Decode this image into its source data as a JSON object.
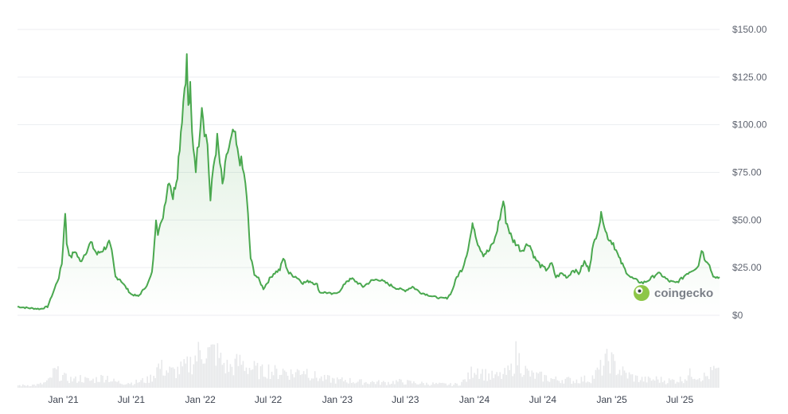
{
  "chart_data": {
    "type": "area",
    "series": [
      {
        "values": [
          [
            "2020-09-01",
            4.5
          ],
          [
            "2020-10-01",
            3.8
          ],
          [
            "2020-11-01",
            3.3
          ],
          [
            "2020-11-20",
            4.5
          ],
          [
            "2020-12-05",
            12
          ],
          [
            "2020-12-20",
            20
          ],
          [
            "2020-12-28",
            27
          ],
          [
            "2021-01-03",
            45
          ],
          [
            "2021-01-06",
            55
          ],
          [
            "2021-01-10",
            38
          ],
          [
            "2021-01-20",
            30
          ],
          [
            "2021-02-01",
            34
          ],
          [
            "2021-02-15",
            28
          ],
          [
            "2021-03-01",
            33
          ],
          [
            "2021-03-15",
            38
          ],
          [
            "2021-04-01",
            32
          ],
          [
            "2021-04-20",
            35
          ],
          [
            "2021-05-03",
            38
          ],
          [
            "2021-05-10",
            33
          ],
          [
            "2021-05-20",
            20
          ],
          [
            "2021-06-01",
            19
          ],
          [
            "2021-06-15",
            15
          ],
          [
            "2021-07-01",
            11
          ],
          [
            "2021-07-20",
            10
          ],
          [
            "2021-08-01",
            13
          ],
          [
            "2021-08-15",
            17
          ],
          [
            "2021-08-25",
            22
          ],
          [
            "2021-09-01",
            38
          ],
          [
            "2021-09-05",
            52
          ],
          [
            "2021-09-10",
            44
          ],
          [
            "2021-09-20",
            48
          ],
          [
            "2021-10-01",
            62
          ],
          [
            "2021-10-10",
            72
          ],
          [
            "2021-10-20",
            62
          ],
          [
            "2021-11-01",
            75
          ],
          [
            "2021-11-10",
            97
          ],
          [
            "2021-11-20",
            120
          ],
          [
            "2021-11-26",
            134
          ],
          [
            "2021-11-30",
            108
          ],
          [
            "2021-12-05",
            118
          ],
          [
            "2021-12-10",
            95
          ],
          [
            "2021-12-20",
            78
          ],
          [
            "2021-12-28",
            92
          ],
          [
            "2022-01-05",
            112
          ],
          [
            "2022-01-12",
            98
          ],
          [
            "2022-01-20",
            90
          ],
          [
            "2022-01-28",
            60
          ],
          [
            "2022-02-05",
            78
          ],
          [
            "2022-02-15",
            92
          ],
          [
            "2022-03-01",
            68
          ],
          [
            "2022-03-15",
            86
          ],
          [
            "2022-04-01",
            96
          ],
          [
            "2022-04-10",
            85
          ],
          [
            "2022-04-20",
            80
          ],
          [
            "2022-05-01",
            70
          ],
          [
            "2022-05-08",
            52
          ],
          [
            "2022-05-15",
            30
          ],
          [
            "2022-05-25",
            22
          ],
          [
            "2022-06-05",
            19
          ],
          [
            "2022-06-18",
            14
          ],
          [
            "2022-07-01",
            18
          ],
          [
            "2022-07-15",
            22
          ],
          [
            "2022-08-01",
            24
          ],
          [
            "2022-08-10",
            30
          ],
          [
            "2022-08-25",
            22
          ],
          [
            "2022-09-15",
            20
          ],
          [
            "2022-10-01",
            17
          ],
          [
            "2022-10-20",
            18
          ],
          [
            "2022-11-08",
            16
          ],
          [
            "2022-11-15",
            12
          ],
          [
            "2022-12-01",
            12
          ],
          [
            "2022-12-20",
            11
          ],
          [
            "2023-01-10",
            13
          ],
          [
            "2023-01-25",
            18
          ],
          [
            "2023-02-10",
            19
          ],
          [
            "2023-02-25",
            17
          ],
          [
            "2023-03-10",
            15
          ],
          [
            "2023-04-01",
            18
          ],
          [
            "2023-04-20",
            19
          ],
          [
            "2023-05-10",
            17
          ],
          [
            "2023-06-10",
            14
          ],
          [
            "2023-07-01",
            13
          ],
          [
            "2023-07-20",
            15
          ],
          [
            "2023-08-10",
            12
          ],
          [
            "2023-09-10",
            10
          ],
          [
            "2023-10-01",
            9
          ],
          [
            "2023-10-20",
            9
          ],
          [
            "2023-11-01",
            12
          ],
          [
            "2023-11-15",
            20
          ],
          [
            "2023-12-01",
            25
          ],
          [
            "2023-12-15",
            35
          ],
          [
            "2023-12-25",
            45
          ],
          [
            "2023-12-29",
            48
          ],
          [
            "2024-01-10",
            38
          ],
          [
            "2024-01-25",
            32
          ],
          [
            "2024-02-10",
            34
          ],
          [
            "2024-02-25",
            40
          ],
          [
            "2024-03-05",
            48
          ],
          [
            "2024-03-13",
            55
          ],
          [
            "2024-03-18",
            60
          ],
          [
            "2024-03-25",
            50
          ],
          [
            "2024-04-10",
            40
          ],
          [
            "2024-04-20",
            38
          ],
          [
            "2024-05-05",
            34
          ],
          [
            "2024-05-25",
            38
          ],
          [
            "2024-06-10",
            30
          ],
          [
            "2024-06-25",
            26
          ],
          [
            "2024-07-10",
            24
          ],
          [
            "2024-07-25",
            27
          ],
          [
            "2024-08-05",
            20
          ],
          [
            "2024-08-20",
            22
          ],
          [
            "2024-09-05",
            20
          ],
          [
            "2024-09-20",
            24
          ],
          [
            "2024-10-05",
            22
          ],
          [
            "2024-10-20",
            28
          ],
          [
            "2024-11-01",
            24
          ],
          [
            "2024-11-10",
            34
          ],
          [
            "2024-11-20",
            42
          ],
          [
            "2024-12-01",
            50
          ],
          [
            "2024-12-06",
            54
          ],
          [
            "2024-12-15",
            44
          ],
          [
            "2024-12-25",
            40
          ],
          [
            "2025-01-05",
            38
          ],
          [
            "2025-01-20",
            30
          ],
          [
            "2025-02-05",
            24
          ],
          [
            "2025-02-20",
            20
          ],
          [
            "2025-03-10",
            18
          ],
          [
            "2025-03-25",
            17
          ],
          [
            "2025-04-05",
            18
          ],
          [
            "2025-04-20",
            20
          ],
          [
            "2025-05-01",
            22
          ],
          [
            "2025-05-15",
            21
          ],
          [
            "2025-06-01",
            18
          ],
          [
            "2025-06-20",
            17
          ],
          [
            "2025-07-05",
            19
          ],
          [
            "2025-07-20",
            22
          ],
          [
            "2025-08-05",
            24
          ],
          [
            "2025-08-20",
            26
          ],
          [
            "2025-08-28",
            35
          ],
          [
            "2025-09-05",
            30
          ],
          [
            "2025-09-15",
            28
          ],
          [
            "2025-09-25",
            22
          ],
          [
            "2025-10-05",
            19
          ],
          [
            "2025-10-15",
            20
          ]
        ]
      }
    ],
    "volume_relative": [
      0.06,
      0.06,
      0.07,
      0.07,
      0.08,
      0.12,
      0.18,
      0.42,
      0.35,
      0.25,
      0.22,
      0.2,
      0.25,
      0.2,
      0.18,
      0.22,
      0.25,
      0.3,
      0.18,
      0.15,
      0.12,
      0.14,
      0.12,
      0.15,
      0.18,
      0.2,
      0.3,
      0.55,
      0.48,
      0.42,
      0.4,
      0.45,
      0.5,
      0.6,
      0.75,
      0.9,
      1.0,
      0.85,
      0.95,
      0.7,
      0.55,
      0.5,
      0.6,
      0.65,
      0.55,
      0.5,
      0.45,
      0.4,
      0.48,
      0.42,
      0.38,
      0.44,
      0.4,
      0.35,
      0.42,
      0.5,
      0.4,
      0.3,
      0.25,
      0.22,
      0.22,
      0.2,
      0.18,
      0.2,
      0.18,
      0.16,
      0.15,
      0.14,
      0.15,
      0.14,
      0.13,
      0.13,
      0.14,
      0.16,
      0.15,
      0.14,
      0.13,
      0.12,
      0.11,
      0.1,
      0.1,
      0.09,
      0.09,
      0.08,
      0.08,
      0.1,
      0.18,
      0.3,
      0.55,
      0.45,
      0.35,
      0.3,
      0.28,
      0.3,
      0.35,
      0.45,
      0.85,
      0.6,
      0.4,
      0.32,
      0.3,
      0.28,
      0.25,
      0.22,
      0.2,
      0.22,
      0.2,
      0.18,
      0.2,
      0.22,
      0.2,
      0.3,
      0.45,
      0.6,
      0.75,
      0.55,
      0.45,
      0.35,
      0.3,
      0.25,
      0.22,
      0.2,
      0.2,
      0.22,
      0.2,
      0.18,
      0.18,
      0.2,
      0.22,
      0.3,
      0.38,
      0.32,
      0.28,
      0.3,
      0.45,
      0.35
    ],
    "y_ticks": [
      "$150.00",
      "$125.00",
      "$100.00",
      "$75.00",
      "$50.00",
      "$25.00",
      "$0"
    ],
    "y_tick_values": [
      150,
      125,
      100,
      75,
      50,
      25,
      0
    ],
    "x_ticks": [
      "Jan '21",
      "Jul '21",
      "Jan '22",
      "Jul '22",
      "Jan '23",
      "Jul '23",
      "Jan '24",
      "Jul '24",
      "Jan '25",
      "Jul '25"
    ],
    "x_tick_dates": [
      "2021-01-01",
      "2021-07-01",
      "2022-01-01",
      "2022-07-01",
      "2023-01-01",
      "2023-07-01",
      "2024-01-01",
      "2024-07-01",
      "2025-01-01",
      "2025-07-01"
    ],
    "x_range": [
      "2020-09-01",
      "2025-10-15"
    ],
    "ylim": [
      0,
      150
    ],
    "grid": true,
    "colors": {
      "line": "#4aa84f",
      "fill_top": "#4aa84f",
      "volume": "#e7e8ea",
      "grid": "#eceef1"
    }
  },
  "watermark": {
    "text": "coingecko"
  }
}
